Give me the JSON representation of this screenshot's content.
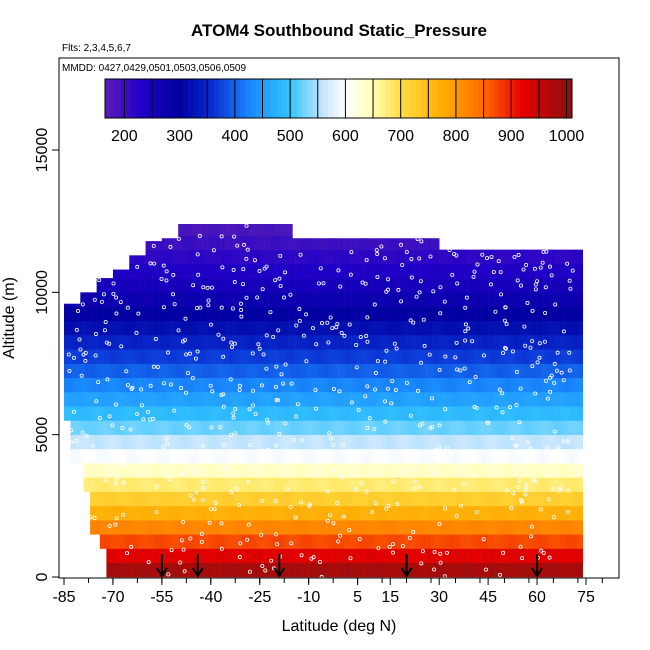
{
  "chart_data": {
    "type": "heatmap",
    "title": "ATOM4 Southbound Static_Pressure",
    "flights_label": "Flts: 2,3,4,5,6,7",
    "dates_label": "MMDD: 0427,0429,0501,0503,0506,0509",
    "xlabel": "Latitude (deg N)",
    "ylabel": "Altitude (m)",
    "xlim": [
      -88,
      88
    ],
    "ylim": [
      0,
      17500
    ],
    "x_ticks": [
      -85,
      -70,
      -55,
      -40,
      -25,
      -10,
      5,
      15,
      30,
      45,
      60,
      75
    ],
    "y_ticks": [
      0,
      5000,
      10000,
      15000
    ],
    "colorbar": {
      "min": 165,
      "max": 1010,
      "ticks": [
        200,
        300,
        400,
        500,
        600,
        700,
        800,
        900,
        1000
      ],
      "stops": [
        {
          "v": 165,
          "c": "#5a1fb5"
        },
        {
          "v": 230,
          "c": "#2200c8"
        },
        {
          "v": 300,
          "c": "#0000a0"
        },
        {
          "v": 360,
          "c": "#0a2fd2"
        },
        {
          "v": 430,
          "c": "#1a8cff"
        },
        {
          "v": 500,
          "c": "#33c4ff"
        },
        {
          "v": 560,
          "c": "#c8e6ff"
        },
        {
          "v": 600,
          "c": "#ffffff"
        },
        {
          "v": 650,
          "c": "#ffffb4"
        },
        {
          "v": 700,
          "c": "#ffdd44"
        },
        {
          "v": 780,
          "c": "#ffaa00"
        },
        {
          "v": 850,
          "c": "#ff6a00"
        },
        {
          "v": 920,
          "c": "#e60000"
        },
        {
          "v": 1010,
          "c": "#8b1010"
        }
      ]
    },
    "coverage": [
      {
        "lat": -85,
        "alt_max": 9600
      },
      {
        "lat": -80,
        "alt_max": 10000
      },
      {
        "lat": -75,
        "alt_max": 10500
      },
      {
        "lat": -70,
        "alt_max": 10800
      },
      {
        "lat": -65,
        "alt_max": 11300
      },
      {
        "lat": -60,
        "alt_max": 11800
      },
      {
        "lat": -55,
        "alt_max": 11900
      },
      {
        "lat": -50,
        "alt_max": 12400
      },
      {
        "lat": -20,
        "alt_max": 12400
      },
      {
        "lat": -15,
        "alt_max": 11900
      },
      {
        "lat": 25,
        "alt_max": 11900
      },
      {
        "lat": 30,
        "alt_max": 11500
      },
      {
        "lat": 60,
        "alt_max": 11500
      },
      {
        "lat": 72,
        "alt_max": 11500
      }
    ],
    "transitions": [
      {
        "lat": -55,
        "alt": 0
      },
      {
        "lat": -44,
        "alt": 0
      },
      {
        "lat": -19,
        "alt": 0
      },
      {
        "lat": 20,
        "alt": 0
      },
      {
        "lat": 60,
        "alt": 0
      }
    ]
  }
}
